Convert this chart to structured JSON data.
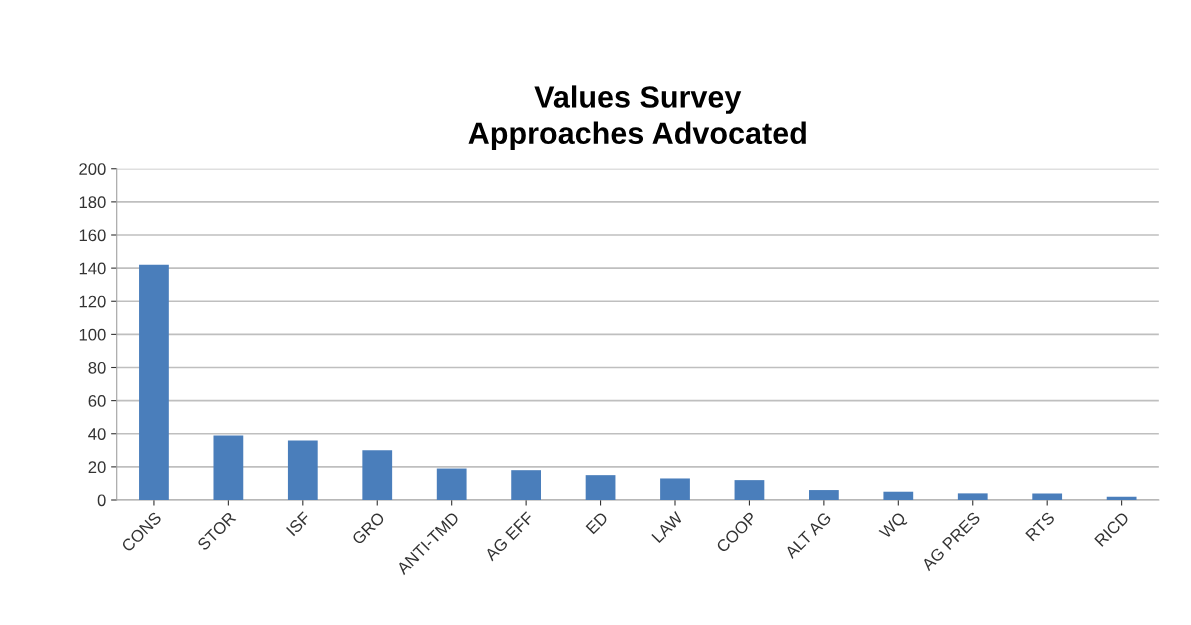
{
  "chart_data": {
    "type": "bar",
    "title": "Values Survey\nApproaches Advocated",
    "categories": [
      "CONS",
      "STOR",
      "ISF",
      "GRO",
      "ANTI-TMD",
      "AG EFF",
      "ED",
      "LAW",
      "COOP",
      "ALT AG",
      "WQ",
      "AG PRES",
      "RTS",
      "RICD"
    ],
    "values": [
      142,
      39,
      36,
      30,
      19,
      18,
      15,
      13,
      12,
      6,
      5,
      4,
      4,
      2
    ],
    "color": "#4a7ebb",
    "ylim": [
      0,
      200
    ],
    "yticks": [
      0,
      20,
      40,
      60,
      80,
      100,
      120,
      140,
      160,
      180,
      200
    ],
    "grid": "y"
  }
}
